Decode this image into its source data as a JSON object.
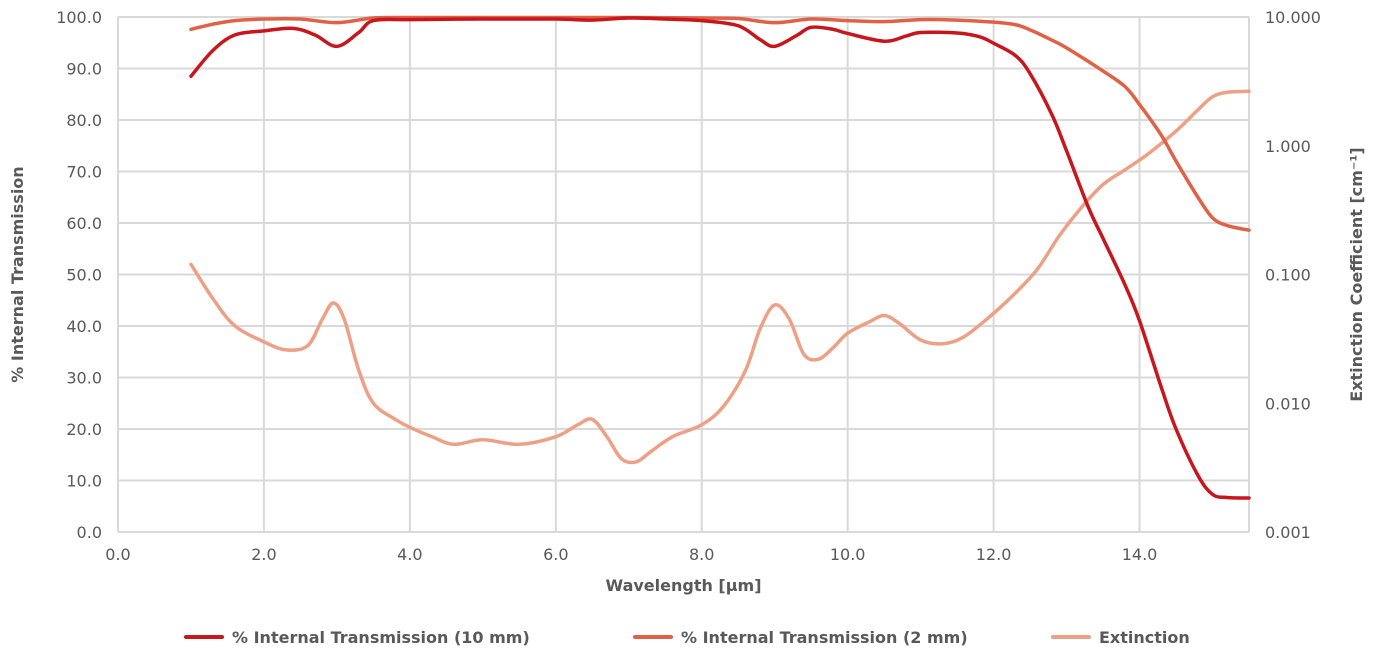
{
  "chart_data": {
    "type": "line",
    "xlabel": "Wavelength [µm]",
    "ylabel": "% Internal Transmission",
    "y2label": "Extinction Coefficient [cm⁻¹]",
    "xlim": [
      0,
      15.5
    ],
    "ylim": [
      0,
      100
    ],
    "y2lim": [
      0.001,
      10
    ],
    "y2scale": "log",
    "x_ticks": [
      "0.0",
      "2.0",
      "4.0",
      "6.0",
      "8.0",
      "10.0",
      "12.0",
      "14.0"
    ],
    "y_ticks": [
      "0.0",
      "10.0",
      "20.0",
      "30.0",
      "40.0",
      "50.0",
      "60.0",
      "70.0",
      "80.0",
      "90.0",
      "100.0"
    ],
    "y2_ticks": [
      "0.001",
      "0.010",
      "0.100",
      "1.000",
      "10.000"
    ],
    "grid": true,
    "legend_position": "bottom",
    "series": [
      {
        "name": "% Internal Transmission (10 mm)",
        "axis": "left",
        "color": "#c8161d",
        "points": [
          [
            1.0,
            88.5
          ],
          [
            1.3,
            93.5
          ],
          [
            1.6,
            96.5
          ],
          [
            2.0,
            97.3
          ],
          [
            2.4,
            97.8
          ],
          [
            2.7,
            96.5
          ],
          [
            3.0,
            94.3
          ],
          [
            3.3,
            97.0
          ],
          [
            3.5,
            99.3
          ],
          [
            4.0,
            99.5
          ],
          [
            5.0,
            99.6
          ],
          [
            6.0,
            99.6
          ],
          [
            6.5,
            99.4
          ],
          [
            7.0,
            99.8
          ],
          [
            7.5,
            99.6
          ],
          [
            8.0,
            99.3
          ],
          [
            8.5,
            98.3
          ],
          [
            8.8,
            95.6
          ],
          [
            9.0,
            94.3
          ],
          [
            9.3,
            96.4
          ],
          [
            9.5,
            98.0
          ],
          [
            9.8,
            97.6
          ],
          [
            10.0,
            96.8
          ],
          [
            10.5,
            95.3
          ],
          [
            10.8,
            96.3
          ],
          [
            11.0,
            97.0
          ],
          [
            11.5,
            96.9
          ],
          [
            11.8,
            96.2
          ],
          [
            12.0,
            94.9
          ],
          [
            12.3,
            92.5
          ],
          [
            12.5,
            89.0
          ],
          [
            12.8,
            81.0
          ],
          [
            13.0,
            74.0
          ],
          [
            13.3,
            63.0
          ],
          [
            13.5,
            57.0
          ],
          [
            13.8,
            48.0
          ],
          [
            14.0,
            41.0
          ],
          [
            14.3,
            28.0
          ],
          [
            14.5,
            20.0
          ],
          [
            14.8,
            11.0
          ],
          [
            15.0,
            7.3
          ],
          [
            15.2,
            6.7
          ],
          [
            15.5,
            6.6
          ]
        ]
      },
      {
        "name": "% Internal Transmission (2 mm)",
        "axis": "left",
        "color": "#df6247",
        "points": [
          [
            1.0,
            97.6
          ],
          [
            1.3,
            98.6
          ],
          [
            1.6,
            99.3
          ],
          [
            2.0,
            99.6
          ],
          [
            2.5,
            99.6
          ],
          [
            3.0,
            98.9
          ],
          [
            3.5,
            99.8
          ],
          [
            4.0,
            99.9
          ],
          [
            5.0,
            99.9
          ],
          [
            6.0,
            99.9
          ],
          [
            7.0,
            99.9
          ],
          [
            8.0,
            99.8
          ],
          [
            8.5,
            99.7
          ],
          [
            9.0,
            98.9
          ],
          [
            9.5,
            99.6
          ],
          [
            10.0,
            99.3
          ],
          [
            10.5,
            99.1
          ],
          [
            11.0,
            99.5
          ],
          [
            11.5,
            99.4
          ],
          [
            12.0,
            99.0
          ],
          [
            12.3,
            98.5
          ],
          [
            12.5,
            97.5
          ],
          [
            12.8,
            95.5
          ],
          [
            13.0,
            94.0
          ],
          [
            13.5,
            89.5
          ],
          [
            13.8,
            86.5
          ],
          [
            14.0,
            83.0
          ],
          [
            14.3,
            77.0
          ],
          [
            14.5,
            72.0
          ],
          [
            14.8,
            65.0
          ],
          [
            15.0,
            61.0
          ],
          [
            15.2,
            59.5
          ],
          [
            15.5,
            58.6
          ]
        ]
      },
      {
        "name": "Extinction",
        "axis": "right",
        "color": "#eea087",
        "points": [
          [
            1.0,
            0.12
          ],
          [
            1.3,
            0.065
          ],
          [
            1.6,
            0.04
          ],
          [
            2.0,
            0.03
          ],
          [
            2.3,
            0.026
          ],
          [
            2.6,
            0.028
          ],
          [
            2.8,
            0.045
          ],
          [
            2.95,
            0.06
          ],
          [
            3.1,
            0.045
          ],
          [
            3.3,
            0.018
          ],
          [
            3.5,
            0.01
          ],
          [
            3.8,
            0.0075
          ],
          [
            4.0,
            0.0065
          ],
          [
            4.3,
            0.0055
          ],
          [
            4.6,
            0.0048
          ],
          [
            5.0,
            0.0052
          ],
          [
            5.5,
            0.0048
          ],
          [
            6.0,
            0.0055
          ],
          [
            6.3,
            0.0068
          ],
          [
            6.5,
            0.0075
          ],
          [
            6.7,
            0.0055
          ],
          [
            6.9,
            0.0037
          ],
          [
            7.1,
            0.0035
          ],
          [
            7.3,
            0.0042
          ],
          [
            7.6,
            0.0055
          ],
          [
            8.0,
            0.0068
          ],
          [
            8.3,
            0.0095
          ],
          [
            8.6,
            0.018
          ],
          [
            8.8,
            0.038
          ],
          [
            9.0,
            0.058
          ],
          [
            9.2,
            0.045
          ],
          [
            9.4,
            0.024
          ],
          [
            9.6,
            0.022
          ],
          [
            9.8,
            0.027
          ],
          [
            10.0,
            0.035
          ],
          [
            10.3,
            0.043
          ],
          [
            10.5,
            0.048
          ],
          [
            10.7,
            0.042
          ],
          [
            11.0,
            0.031
          ],
          [
            11.3,
            0.029
          ],
          [
            11.6,
            0.033
          ],
          [
            12.0,
            0.05
          ],
          [
            12.3,
            0.072
          ],
          [
            12.6,
            0.11
          ],
          [
            12.9,
            0.2
          ],
          [
            13.2,
            0.33
          ],
          [
            13.5,
            0.5
          ],
          [
            13.8,
            0.65
          ],
          [
            14.1,
            0.85
          ],
          [
            14.5,
            1.3
          ],
          [
            14.8,
            1.9
          ],
          [
            15.0,
            2.4
          ],
          [
            15.2,
            2.6
          ],
          [
            15.5,
            2.65
          ]
        ]
      }
    ]
  }
}
